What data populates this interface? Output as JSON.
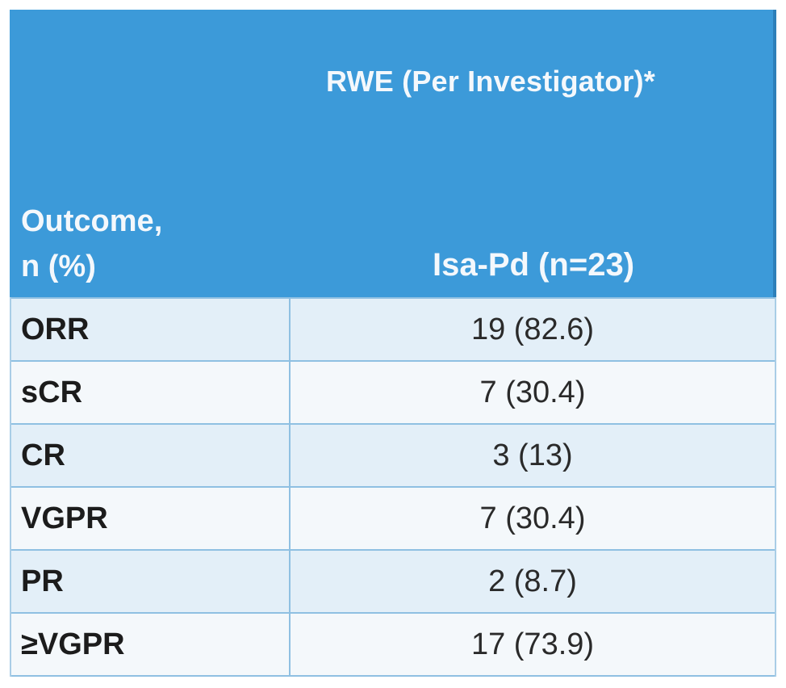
{
  "table": {
    "group_header": "RWE (Per Investigator)*",
    "row_header_lines": [
      "Outcome,",
      "n (%)"
    ],
    "column_header": "Isa-Pd (n=23)",
    "rows": [
      {
        "label": "ORR",
        "value": "19 (82.6)"
      },
      {
        "label": "sCR",
        "value": "7 (30.4)"
      },
      {
        "label": "CR",
        "value": "3 (13)"
      },
      {
        "label": "VGPR",
        "value": "7 (30.4)"
      },
      {
        "label": "PR",
        "value": "2 (8.7)"
      },
      {
        "label": "≥VGPR",
        "value": "17 (73.9)"
      }
    ]
  },
  "colors": {
    "header_bg": "#3c9ad9",
    "row_alt_bg": "#e3eff8",
    "row_plain_bg": "#f4f8fb",
    "grid": "#8fc0e2"
  }
}
